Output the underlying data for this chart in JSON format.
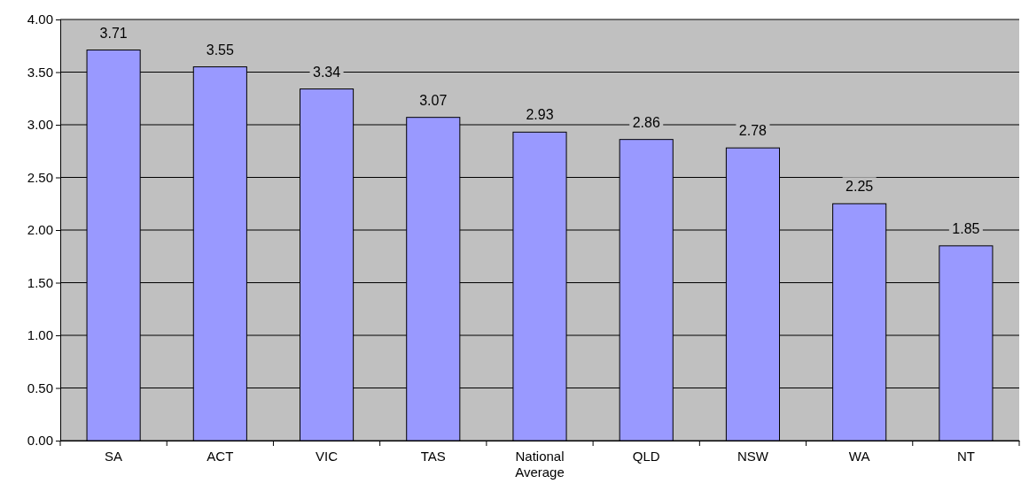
{
  "chart_data": {
    "type": "bar",
    "categories": [
      "SA",
      "ACT",
      "VIC",
      "TAS",
      "National Average",
      "QLD",
      "NSW",
      "WA",
      "NT"
    ],
    "values": [
      3.71,
      3.55,
      3.34,
      3.07,
      2.93,
      2.86,
      2.78,
      2.25,
      1.85
    ],
    "color": "#9999ff",
    "data_labels": true,
    "ylim": [
      0,
      4
    ],
    "yticks": [
      {
        "value": 0,
        "label": "0.00"
      },
      {
        "value": 0.5,
        "label": "0.50"
      },
      {
        "value": 1,
        "label": "1.00"
      },
      {
        "value": 1.5,
        "label": "1.50"
      },
      {
        "value": 2,
        "label": "2.00"
      },
      {
        "value": 2.5,
        "label": "2.50"
      },
      {
        "value": 3,
        "label": "3.00"
      },
      {
        "value": 3.5,
        "label": "3.50"
      },
      {
        "value": 4,
        "label": "4.00"
      }
    ],
    "grid": "y"
  }
}
